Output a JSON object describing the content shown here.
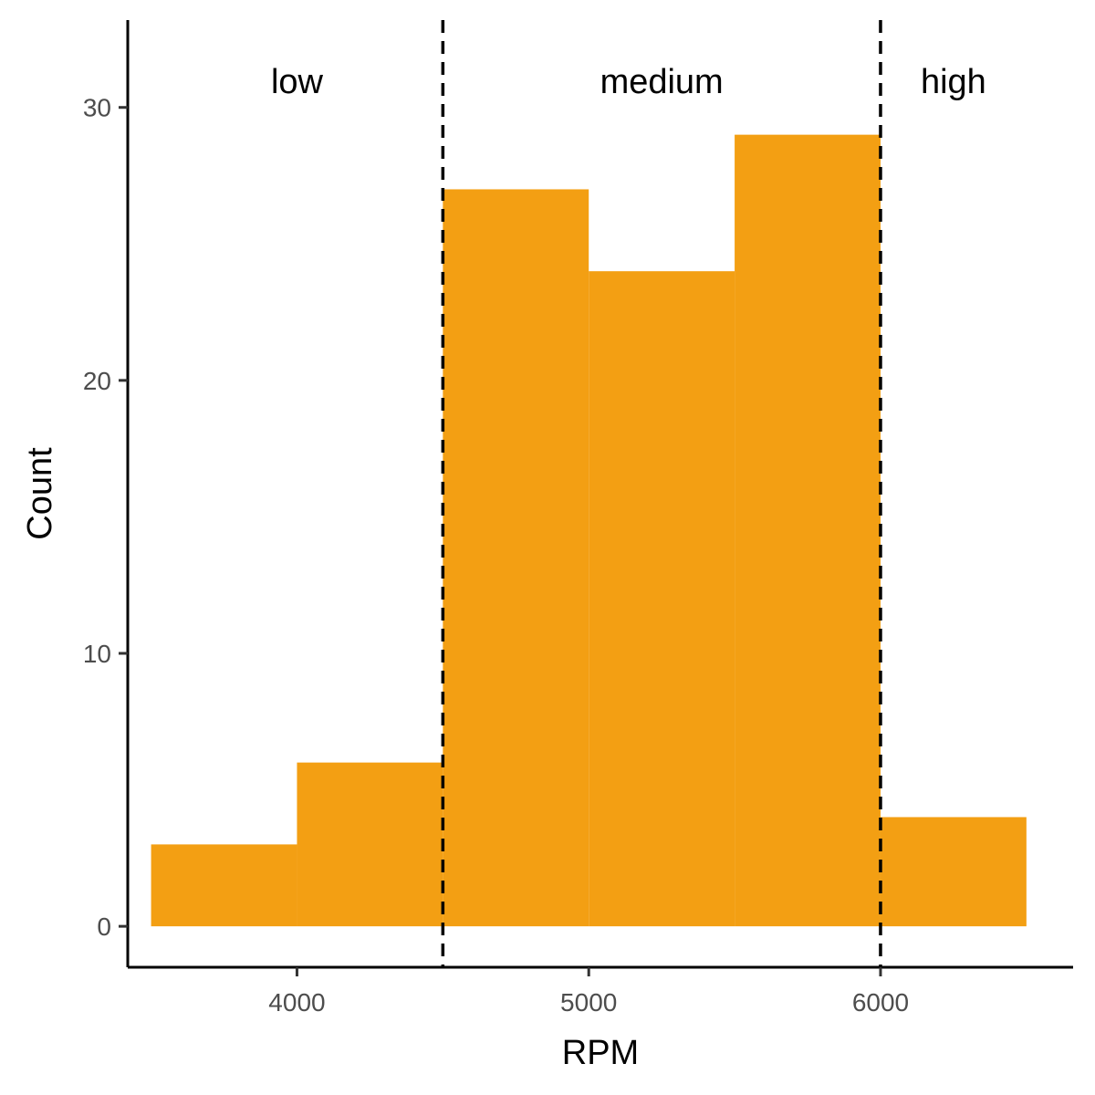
{
  "chart_data": {
    "type": "bar",
    "subtype": "histogram",
    "title": "",
    "xlabel": "RPM",
    "ylabel": "Count",
    "xlim": [
      3420,
      6660
    ],
    "ylim": [
      -1.5,
      33.2
    ],
    "x_ticks": [
      4000,
      5000,
      6000
    ],
    "y_ticks": [
      0,
      10,
      20,
      30
    ],
    "grid": false,
    "legend": "none",
    "bar_color": "#F39F13",
    "bins": [
      {
        "x0": 3500,
        "x1": 4000,
        "count": 3
      },
      {
        "x0": 4000,
        "x1": 4500,
        "count": 6
      },
      {
        "x0": 4500,
        "x1": 5000,
        "count": 27
      },
      {
        "x0": 5000,
        "x1": 5500,
        "count": 24
      },
      {
        "x0": 5500,
        "x1": 6000,
        "count": 29
      },
      {
        "x0": 6000,
        "x1": 6500,
        "count": 4
      }
    ],
    "reference_lines": [
      {
        "x": 4500,
        "style": "dashed",
        "color": "#000000"
      },
      {
        "x": 6000,
        "style": "dashed",
        "color": "#000000"
      }
    ],
    "annotations": [
      {
        "text": "low",
        "x": 4000,
        "y": 31
      },
      {
        "text": "medium",
        "x": 5250,
        "y": 31
      },
      {
        "text": "high",
        "x": 6250,
        "y": 31
      }
    ]
  }
}
